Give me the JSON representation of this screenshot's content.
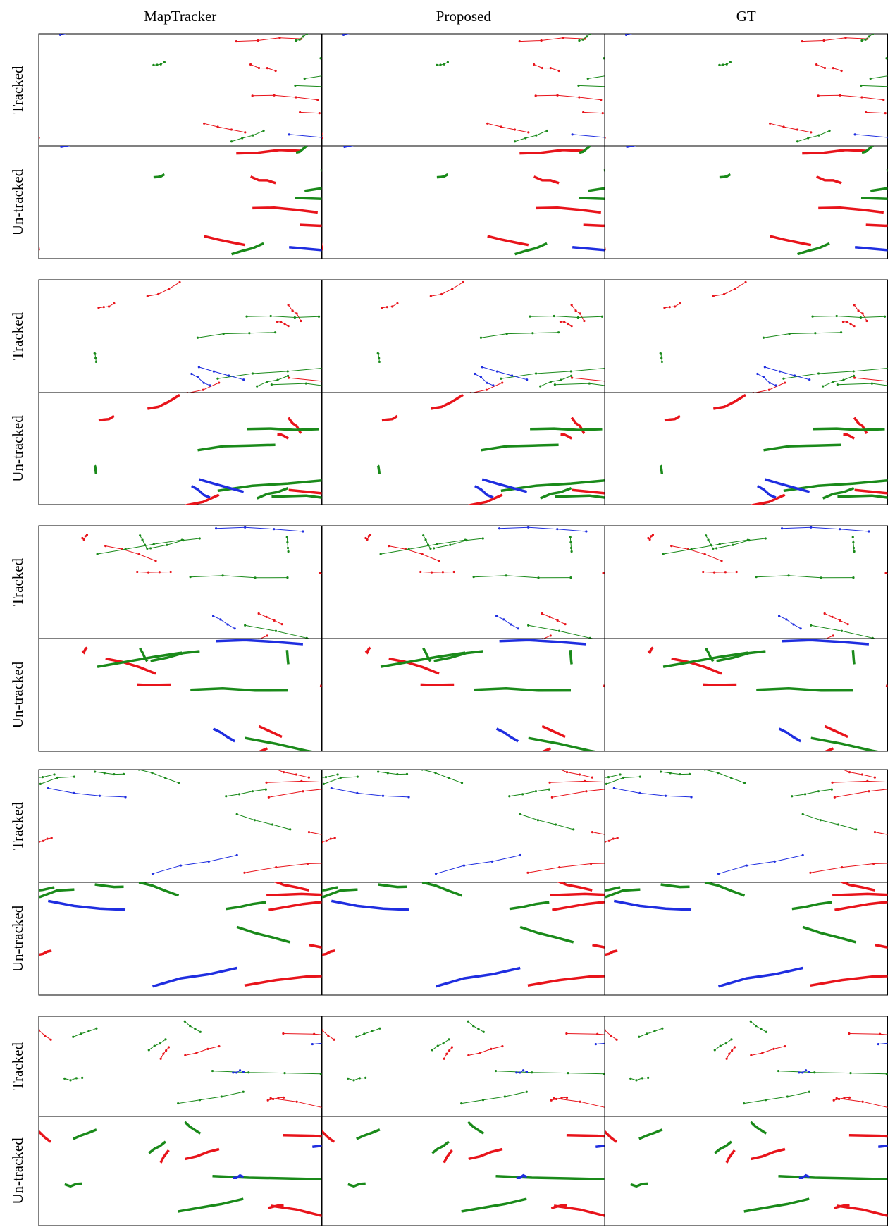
{
  "columns": [
    "MapTracker",
    "Proposed",
    "GT"
  ],
  "groups": [
    {
      "rows": [
        "Tracked",
        "Un-tracked"
      ]
    },
    {
      "rows": [
        "Tracked",
        "Un-tracked"
      ]
    },
    {
      "rows": [
        "Tracked",
        "Un-tracked"
      ]
    },
    {
      "rows": [
        "Tracked",
        "Un-tracked"
      ]
    },
    {
      "rows": [
        "Tracked",
        "Un-tracked"
      ]
    }
  ]
}
